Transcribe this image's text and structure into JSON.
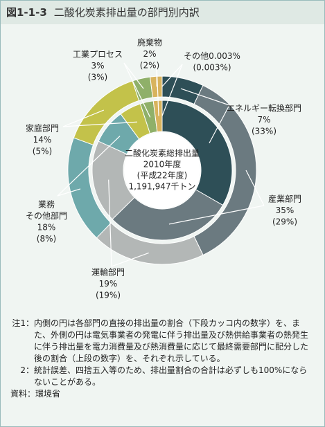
{
  "chart_data": {
    "type": "pie",
    "title_label": "図1-1-3",
    "title": "二酸化炭素排出量の部門別内訳",
    "categories": [
      [
        "エネルギー転換部門"
      ],
      [
        "産業部門"
      ],
      [
        "運輸部門"
      ],
      [
        "業務",
        "その他部門"
      ],
      [
        "家庭部門"
      ],
      [
        "工業プロセス"
      ],
      [
        "廃棄物"
      ],
      [
        "その他"
      ]
    ],
    "colors": [
      "#2e4f57",
      "#6b7a80",
      "#b3b7b6",
      "#6ea9ab",
      "#c3c24a",
      "#8fb069",
      "#d8b35d",
      "#e9d9a6"
    ],
    "series": [
      {
        "values": [
          7,
          35,
          19,
          18,
          14,
          3,
          2,
          0.003
        ],
        "value_labels": [
          "7%",
          "35%",
          "19%",
          "18%",
          "14%",
          "3%",
          "2%",
          "0.003%"
        ]
      },
      {
        "values": [
          33,
          29,
          19,
          8,
          5,
          3,
          2,
          0.003
        ],
        "value_labels": [
          "(33%)",
          "(29%)",
          "(19%)",
          "(8%)",
          "(5%)",
          "(3%)",
          "(2%)",
          "(0.003%)"
        ]
      }
    ],
    "center_text": [
      "二酸化炭素総排出量",
      "2010年度",
      "(平成22年度)",
      "1,191,947千トン"
    ]
  },
  "notes": [
    {
      "label": "注1：",
      "text": "内側の円は各部門の直接の排出量の割合（下段カッコ内の数字）を、また、外側の円は電気事業者の発電に伴う排出量及び熱供給事業者の熱発生に伴う排出量を電力消費量及び熱消費量に応じて最終需要部門に配分した後の割合（上段の数字）を、それぞれ示している。"
    },
    {
      "label": "2：",
      "text": "統計誤差、四捨五入等のため、排出量割合の合計は必ずしも100%にならないことがある。"
    }
  ],
  "source": "資料：環境省"
}
